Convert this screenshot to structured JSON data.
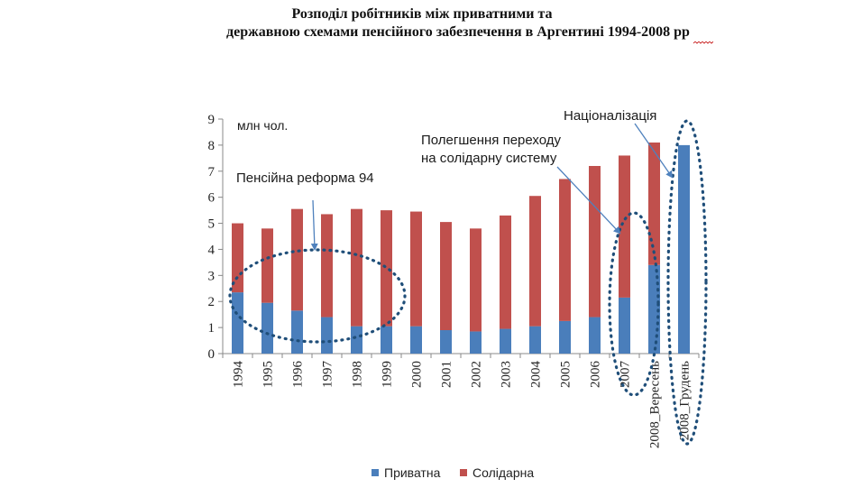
{
  "title": {
    "line1": "Розподіл робітників між приватними та",
    "line2": "державною схемами пенсійного забезпечення в Аргентині 1994-2008 рр"
  },
  "colors": {
    "private": "#4a7ebb",
    "solidary": "#c0504d",
    "dotted": "#1f4e79",
    "arrow": "#4f81bd"
  },
  "annotations": {
    "unit": "млн чол.",
    "reform": "Пенсійна реформа 94",
    "transition_line1": "Полегшення переходу",
    "transition_line2": "на солідарну систему",
    "nationalization": "Націоналізація"
  },
  "legend": {
    "private": "Приватна",
    "solidary": "Солідарна"
  },
  "chart_data": {
    "type": "bar",
    "stacked": true,
    "categories": [
      "1994",
      "1995",
      "1996",
      "1997",
      "1998",
      "1999",
      "2000",
      "2001",
      "2002",
      "2003",
      "2004",
      "2005",
      "2006",
      "2007",
      "2008_Вересень",
      "2008_Грудень"
    ],
    "series": [
      {
        "name": "Приватна",
        "values": [
          2.35,
          1.95,
          1.65,
          1.4,
          1.05,
          1.05,
          1.05,
          0.9,
          0.85,
          0.95,
          1.05,
          1.25,
          1.4,
          2.15,
          3.4,
          8.0
        ]
      },
      {
        "name": "Солідарна",
        "values": [
          2.65,
          2.85,
          3.9,
          3.95,
          4.5,
          4.45,
          4.4,
          4.15,
          3.95,
          4.35,
          5.0,
          5.45,
          5.8,
          5.45,
          4.7,
          0.0
        ]
      }
    ],
    "ylim": [
      0,
      9
    ],
    "yticks": [
      "0",
      "1",
      "2",
      "3",
      "4",
      "5",
      "6",
      "7",
      "8",
      "9"
    ],
    "ylabel": "",
    "xlabel": "",
    "grid": false,
    "legend_position": "bottom"
  }
}
